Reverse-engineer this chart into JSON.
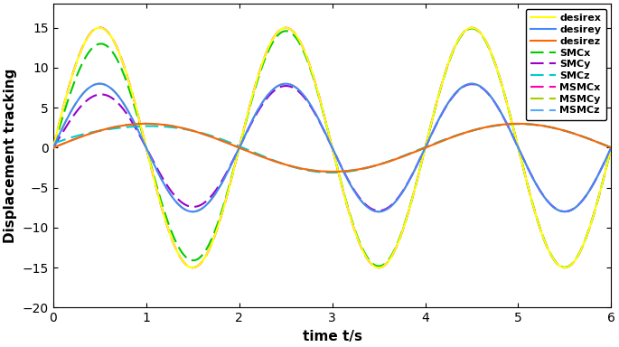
{
  "t_start": 0,
  "t_end": 6,
  "t_points": 2000,
  "omega": 3.14159265,
  "colors": {
    "desirex": "#ffff00",
    "desirey": "#4488ff",
    "desirez": "#ff6600",
    "SMCx": "#00cc00",
    "SMCy": "#9900cc",
    "SMCz": "#00cccc",
    "MSMCx": "#ff00aa",
    "MSMCy": "#aacc00",
    "MSMCz": "#55aaff"
  },
  "xlabel": "time t/s",
  "ylabel": "Displacement tracking",
  "ylim": [
    -20,
    18
  ],
  "xlim": [
    0,
    6
  ],
  "xticks": [
    0,
    1,
    2,
    3,
    4,
    5,
    6
  ],
  "yticks": [
    -20,
    -15,
    -10,
    -5,
    0,
    5,
    10,
    15
  ],
  "figsize": [
    6.85,
    3.84
  ],
  "dpi": 100
}
